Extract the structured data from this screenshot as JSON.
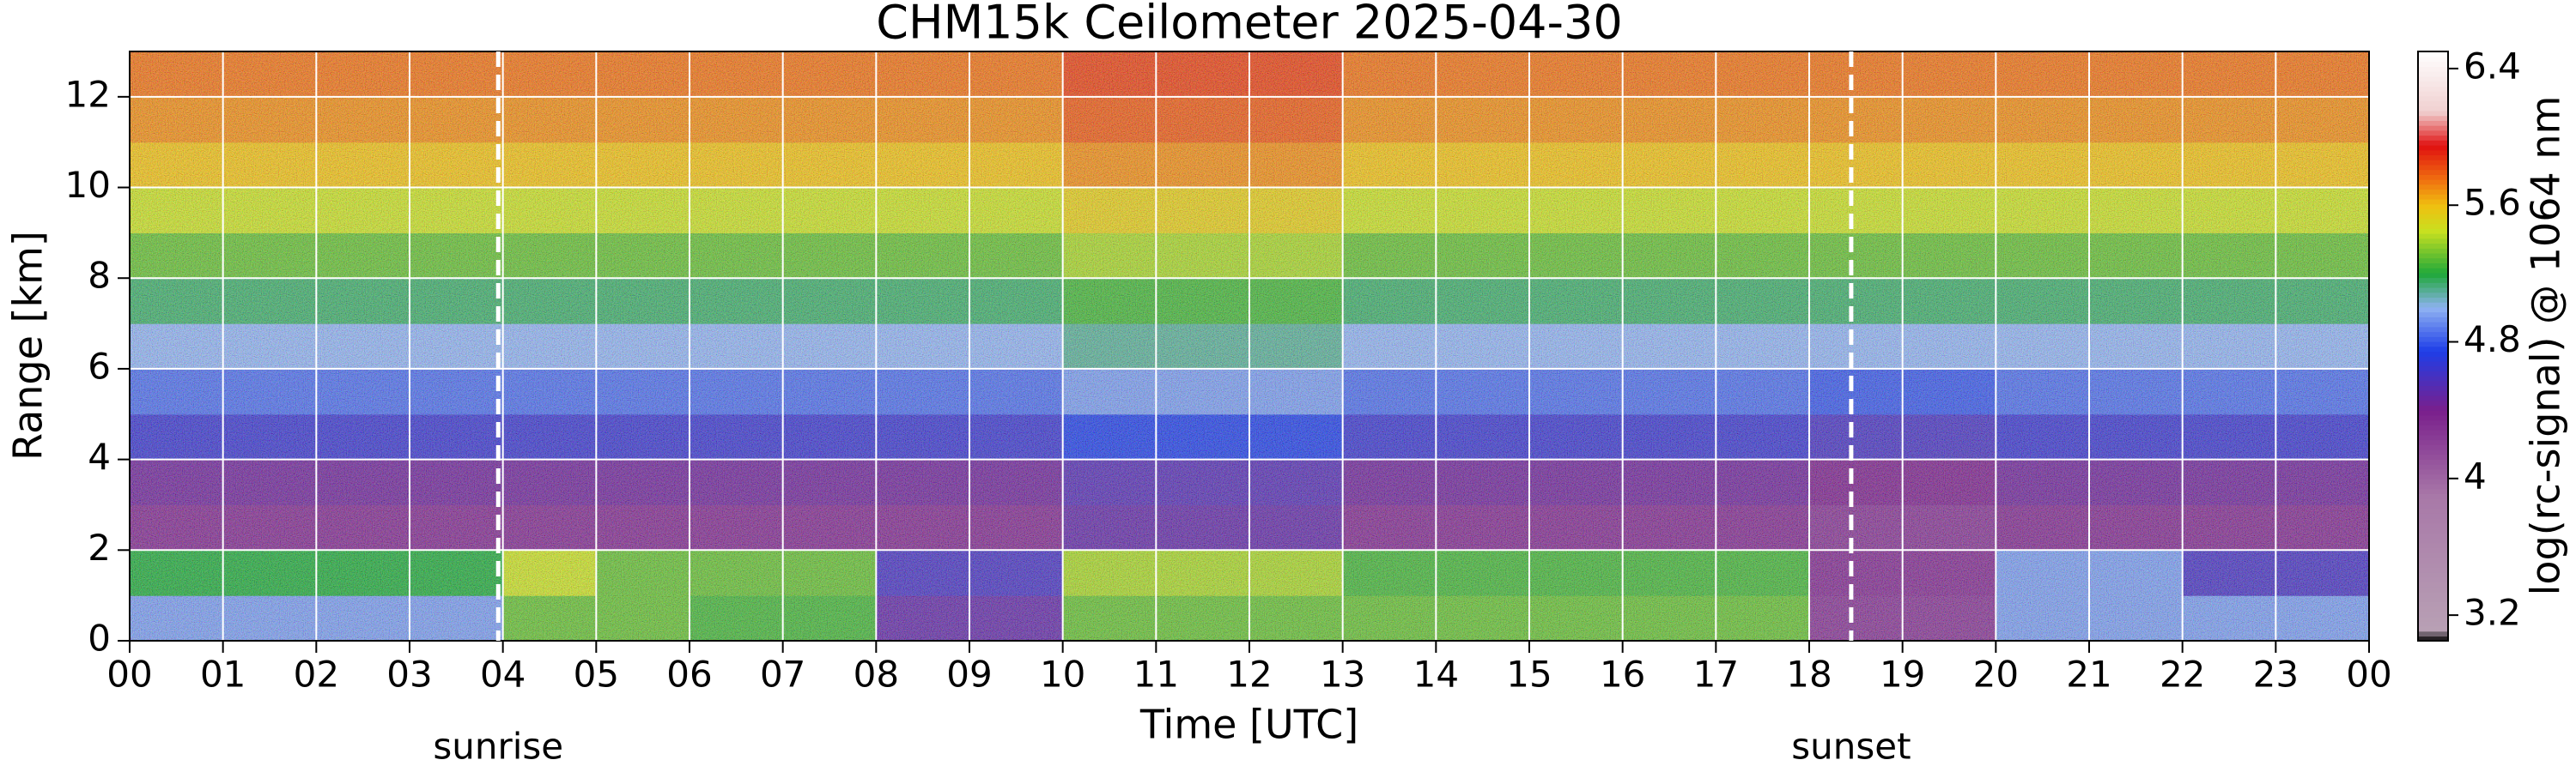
{
  "chart_data": {
    "type": "heatmap",
    "title": "CHM15k Ceilometer 2025-04-30",
    "x_label": "Time [UTC]",
    "y_label": "Range [km]",
    "colorbar_label": "log(rc-signal) @ 1064 nm",
    "xlim": [
      0,
      24
    ],
    "ylim": [
      0,
      13
    ],
    "clim": [
      3.05,
      6.5
    ],
    "xticks": [
      {
        "value": 0,
        "label": "00"
      },
      {
        "value": 1,
        "label": "01"
      },
      {
        "value": 2,
        "label": "02"
      },
      {
        "value": 3,
        "label": "03"
      },
      {
        "value": 4,
        "label": "04"
      },
      {
        "value": 5,
        "label": "05"
      },
      {
        "value": 6,
        "label": "06"
      },
      {
        "value": 7,
        "label": "07"
      },
      {
        "value": 8,
        "label": "08"
      },
      {
        "value": 9,
        "label": "09"
      },
      {
        "value": 10,
        "label": "10"
      },
      {
        "value": 11,
        "label": "11"
      },
      {
        "value": 12,
        "label": "12"
      },
      {
        "value": 13,
        "label": "13"
      },
      {
        "value": 14,
        "label": "14"
      },
      {
        "value": 15,
        "label": "15"
      },
      {
        "value": 16,
        "label": "16"
      },
      {
        "value": 17,
        "label": "17"
      },
      {
        "value": 18,
        "label": "18"
      },
      {
        "value": 19,
        "label": "19"
      },
      {
        "value": 20,
        "label": "20"
      },
      {
        "value": 21,
        "label": "21"
      },
      {
        "value": 22,
        "label": "22"
      },
      {
        "value": 23,
        "label": "23"
      },
      {
        "value": 24,
        "label": "00"
      }
    ],
    "yticks": [
      0,
      2,
      4,
      6,
      8,
      10,
      12
    ],
    "cticks": [
      3.2,
      4,
      4.8,
      5.6,
      6.4
    ],
    "grid": true,
    "x_edges": [
      0,
      1,
      2,
      3,
      4,
      5,
      6,
      7,
      8,
      9,
      10,
      11,
      12,
      13,
      14,
      15,
      16,
      17,
      18,
      19,
      20,
      21,
      22,
      23,
      24
    ],
    "y_edges": [
      0,
      1,
      2,
      3,
      4,
      5,
      6,
      7,
      8,
      9,
      10,
      11,
      12,
      13
    ],
    "z": [
      [
        4.95,
        4.95,
        4.95,
        4.95,
        5.3,
        5.3,
        5.25,
        5.25,
        4.5,
        4.5,
        5.3,
        5.3,
        5.3,
        5.3,
        5.3,
        5.3,
        5.3,
        5.3,
        4.3,
        4.3,
        4.95,
        4.95,
        4.95,
        4.95
      ],
      [
        5.2,
        5.2,
        5.2,
        5.2,
        5.45,
        5.3,
        5.3,
        5.3,
        4.6,
        4.6,
        5.4,
        5.4,
        5.4,
        5.25,
        5.25,
        5.25,
        5.25,
        5.25,
        4.35,
        4.35,
        4.95,
        4.95,
        4.6,
        4.6
      ],
      [
        4.35,
        4.35,
        4.35,
        4.35,
        4.35,
        4.35,
        4.35,
        4.35,
        4.35,
        4.35,
        4.5,
        4.5,
        4.5,
        4.35,
        4.35,
        4.35,
        4.35,
        4.35,
        4.3,
        4.3,
        4.35,
        4.35,
        4.35,
        4.35
      ],
      [
        4.45,
        4.45,
        4.45,
        4.45,
        4.45,
        4.45,
        4.45,
        4.45,
        4.45,
        4.45,
        4.55,
        4.55,
        4.55,
        4.45,
        4.45,
        4.45,
        4.45,
        4.45,
        4.4,
        4.4,
        4.45,
        4.45,
        4.45,
        4.45
      ],
      [
        4.65,
        4.65,
        4.65,
        4.65,
        4.65,
        4.65,
        4.65,
        4.65,
        4.65,
        4.65,
        4.75,
        4.75,
        4.75,
        4.65,
        4.65,
        4.65,
        4.65,
        4.65,
        4.6,
        4.6,
        4.65,
        4.65,
        4.65,
        4.65
      ],
      [
        4.85,
        4.85,
        4.85,
        4.85,
        4.85,
        4.85,
        4.85,
        4.85,
        4.85,
        4.85,
        4.95,
        4.95,
        4.95,
        4.85,
        4.85,
        4.85,
        4.85,
        4.85,
        4.8,
        4.8,
        4.85,
        4.85,
        4.85,
        4.85
      ],
      [
        5.0,
        5.0,
        5.0,
        5.0,
        5.0,
        5.0,
        5.0,
        5.0,
        5.0,
        5.0,
        5.1,
        5.1,
        5.1,
        5.0,
        5.0,
        5.0,
        5.0,
        5.0,
        5.0,
        5.0,
        5.0,
        5.0,
        5.0,
        5.0
      ],
      [
        5.15,
        5.15,
        5.15,
        5.15,
        5.15,
        5.15,
        5.15,
        5.15,
        5.15,
        5.15,
        5.25,
        5.25,
        5.25,
        5.15,
        5.15,
        5.15,
        5.15,
        5.15,
        5.15,
        5.15,
        5.15,
        5.15,
        5.15,
        5.15
      ],
      [
        5.3,
        5.3,
        5.3,
        5.3,
        5.3,
        5.3,
        5.3,
        5.3,
        5.3,
        5.3,
        5.4,
        5.4,
        5.4,
        5.3,
        5.3,
        5.3,
        5.3,
        5.3,
        5.3,
        5.3,
        5.3,
        5.3,
        5.3,
        5.3
      ],
      [
        5.45,
        5.45,
        5.45,
        5.45,
        5.45,
        5.45,
        5.45,
        5.45,
        5.45,
        5.45,
        5.55,
        5.55,
        5.55,
        5.45,
        5.45,
        5.45,
        5.45,
        5.45,
        5.45,
        5.45,
        5.45,
        5.45,
        5.45,
        5.45
      ],
      [
        5.6,
        5.6,
        5.6,
        5.6,
        5.6,
        5.6,
        5.6,
        5.6,
        5.6,
        5.6,
        5.7,
        5.7,
        5.7,
        5.6,
        5.6,
        5.6,
        5.6,
        5.6,
        5.6,
        5.6,
        5.6,
        5.6,
        5.6,
        5.6
      ],
      [
        5.7,
        5.7,
        5.7,
        5.7,
        5.7,
        5.7,
        5.7,
        5.7,
        5.7,
        5.7,
        5.8,
        5.8,
        5.8,
        5.7,
        5.7,
        5.7,
        5.7,
        5.7,
        5.7,
        5.7,
        5.7,
        5.7,
        5.7,
        5.7
      ],
      [
        5.75,
        5.75,
        5.75,
        5.75,
        5.75,
        5.75,
        5.75,
        5.75,
        5.75,
        5.75,
        5.85,
        5.85,
        5.85,
        5.75,
        5.75,
        5.75,
        5.75,
        5.75,
        5.75,
        5.75,
        5.75,
        5.75,
        5.75,
        5.75
      ]
    ],
    "colorscale": [
      [
        3.05,
        "#000000"
      ],
      [
        3.12,
        "#b8a0b4"
      ],
      [
        3.9,
        "#a878a8"
      ],
      [
        4.4,
        "#7a1f8c"
      ],
      [
        4.75,
        "#1e3ee8"
      ],
      [
        5.0,
        "#8fb2f2"
      ],
      [
        5.2,
        "#1fa83a"
      ],
      [
        5.45,
        "#c8e020"
      ],
      [
        5.6,
        "#f0c010"
      ],
      [
        5.75,
        "#f07010"
      ],
      [
        5.95,
        "#e01010"
      ],
      [
        6.15,
        "#f0d0d0"
      ],
      [
        6.5,
        "#ffffff"
      ]
    ],
    "annotations": [
      {
        "text": "sunrise",
        "x": 3.95
      },
      {
        "text": "sunset",
        "x": 18.45
      }
    ]
  }
}
